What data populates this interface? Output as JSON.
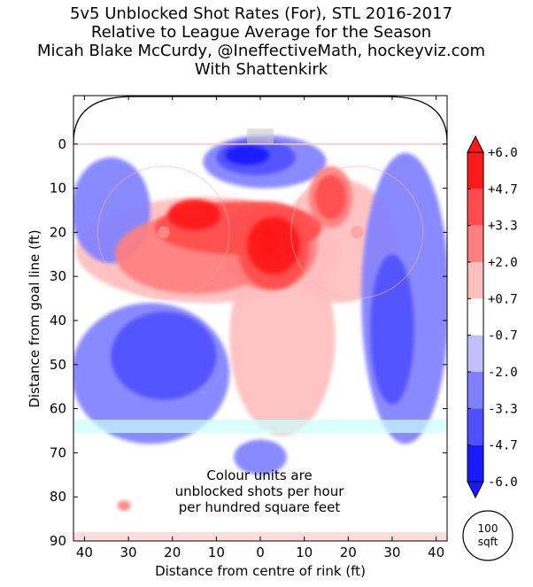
{
  "chart_data": {
    "type": "heatmap",
    "title_lines": [
      "5v5 Unblocked Shot Rates (For), STL 2016-2017",
      "Relative to League Average for the Season",
      "Micah Blake McCurdy, @IneffectiveMath, hockeyviz.com",
      "With Shattenkirk"
    ],
    "xlabel": "Distance from centre of rink (ft)",
    "ylabel": "Distance from goal line (ft)",
    "xlim": [
      -42.5,
      42.5
    ],
    "ylim": [
      -11,
      90
    ],
    "x_ticks": [
      -40,
      -30,
      -20,
      -10,
      0,
      10,
      20,
      30,
      40
    ],
    "x_tick_labels": [
      "40",
      "30",
      "20",
      "10",
      "0",
      "10",
      "20",
      "30",
      "40"
    ],
    "y_ticks": [
      0,
      10,
      20,
      30,
      40,
      50,
      60,
      70,
      80,
      90
    ],
    "y_tick_labels": [
      "0",
      "10",
      "20",
      "30",
      "40",
      "50",
      "60",
      "70",
      "80",
      "90"
    ],
    "colorbar": {
      "tick_labels": [
        "+6.0",
        "+4.7",
        "+3.3",
        "+2.0",
        "+0.7",
        "-0.7",
        "-2.0",
        "-3.3",
        "-4.7",
        "-6.0"
      ],
      "levels": [
        6.0,
        4.7,
        3.3,
        2.0,
        0.7,
        -0.7,
        -2.0,
        -3.3,
        -4.7,
        -6.0
      ],
      "colors": [
        "#ff1a1a",
        "#ff4d4d",
        "#ff7f7f",
        "#ffbebe",
        "#ffffff",
        "#c0c0ff",
        "#8080ff",
        "#5050ff",
        "#1a1aff"
      ]
    },
    "annotation_lines": [
      "Colour units are",
      "unblocked shots per hour",
      "per hundred square feet"
    ],
    "scale_circle_lines": [
      "100",
      "sqft"
    ],
    "regions": [
      {
        "level": -2.0,
        "cx": -34,
        "cy": 15,
        "rx": 9,
        "ry": 12
      },
      {
        "level": -2.0,
        "cx": -25,
        "cy": 52,
        "rx": 18,
        "ry": 16
      },
      {
        "level": -3.3,
        "cx": -22,
        "cy": 48,
        "rx": 12,
        "ry": 10
      },
      {
        "level": -2.0,
        "cx": 33,
        "cy": 35,
        "rx": 10,
        "ry": 33
      },
      {
        "level": -3.3,
        "cx": 30,
        "cy": 42,
        "rx": 5,
        "ry": 17
      },
      {
        "level": -2.0,
        "cx": 1,
        "cy": 4,
        "rx": 14,
        "ry": 6
      },
      {
        "level": -3.3,
        "cx": -1,
        "cy": 3,
        "rx": 9,
        "ry": 4
      },
      {
        "level": -4.7,
        "cx": -3,
        "cy": 2.5,
        "rx": 5,
        "ry": 2.2
      },
      {
        "level": -2.0,
        "cx": 0,
        "cy": 71,
        "rx": 6,
        "ry": 4
      },
      {
        "level": 0.7,
        "cx": -12,
        "cy": 24,
        "rx": 30,
        "ry": 12
      },
      {
        "level": 0.7,
        "cx": 5,
        "cy": 44,
        "rx": 12,
        "ry": 22
      },
      {
        "level": 0.7,
        "cx": 18,
        "cy": 22,
        "rx": 13,
        "ry": 14
      },
      {
        "level": 2.0,
        "cx": -15,
        "cy": 25,
        "rx": 18,
        "ry": 9
      },
      {
        "level": 2.0,
        "cx": 2,
        "cy": 23,
        "rx": 11,
        "ry": 10
      },
      {
        "level": 2.0,
        "cx": 16,
        "cy": 12,
        "rx": 5,
        "ry": 7
      },
      {
        "level": 3.3,
        "cx": -5,
        "cy": 19,
        "rx": 19,
        "ry": 6
      },
      {
        "level": 3.3,
        "cx": 3,
        "cy": 24,
        "rx": 8,
        "ry": 9
      },
      {
        "level": 3.3,
        "cx": 16,
        "cy": 12,
        "rx": 3.5,
        "ry": 5
      },
      {
        "level": 4.7,
        "cx": -15,
        "cy": 16,
        "rx": 6,
        "ry": 3.5
      },
      {
        "level": 4.7,
        "cx": 3,
        "cy": 23,
        "rx": 6,
        "ry": 6.5
      },
      {
        "level": 6.0,
        "cx": 2,
        "cy": 22,
        "rx": 3,
        "ry": 4
      },
      {
        "level": 2.0,
        "cx": -31,
        "cy": 82,
        "rx": 1.5,
        "ry": 1.2
      }
    ],
    "rink_features": {
      "faceoff_dots": [
        {
          "x": -22,
          "y": 20
        },
        {
          "x": 22,
          "y": 20
        }
      ],
      "faceoff_circle_radius": 15,
      "blue_line_y": 64,
      "centre_line_y": 89
    }
  }
}
